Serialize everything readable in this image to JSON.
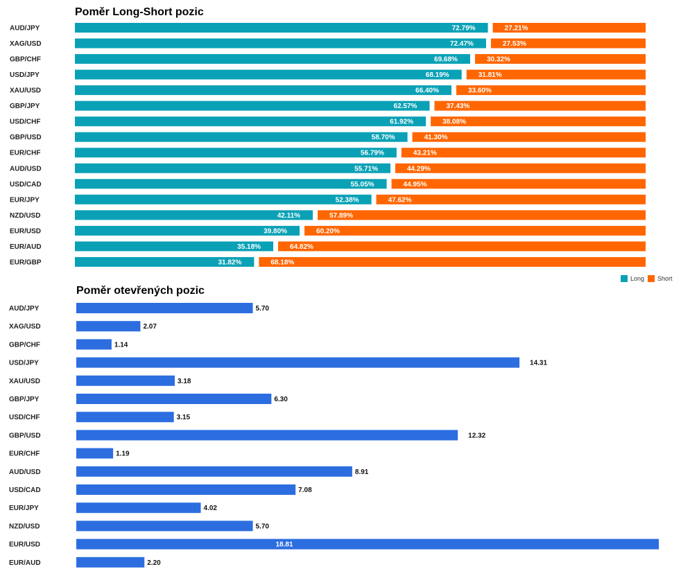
{
  "colors": {
    "long": "#0aa1b6",
    "short": "#ff6600",
    "open": "#2c6ee0"
  },
  "chart_data": [
    {
      "type": "bar",
      "stacked": true,
      "orientation": "horizontal",
      "title": "Poměr Long-Short pozic",
      "categories": [
        "AUD/JPY",
        "XAG/USD",
        "GBP/CHF",
        "USD/JPY",
        "XAU/USD",
        "GBP/JPY",
        "USD/CHF",
        "GBP/USD",
        "EUR/CHF",
        "AUD/USD",
        "USD/CAD",
        "EUR/JPY",
        "NZD/USD",
        "EUR/USD",
        "EUR/AUD",
        "EUR/GBP"
      ],
      "series": [
        {
          "name": "Long",
          "values": [
            72.79,
            72.47,
            69.68,
            68.19,
            66.4,
            62.57,
            61.92,
            58.7,
            56.79,
            55.71,
            55.05,
            52.38,
            42.11,
            39.8,
            35.18,
            31.82
          ]
        },
        {
          "name": "Short",
          "values": [
            27.21,
            27.53,
            30.32,
            31.81,
            33.6,
            37.43,
            38.08,
            41.3,
            43.21,
            44.29,
            44.95,
            47.62,
            57.89,
            60.2,
            64.82,
            68.18
          ]
        }
      ],
      "labels": {
        "long": [
          "72.79%",
          "72.47%",
          "69.68%",
          "68.19%",
          "66.40%",
          "62.57%",
          "61.92%",
          "58.70%",
          "56.79%",
          "55.71%",
          "55.05%",
          "52.38%",
          "42.11%",
          "39.80%",
          "35.18%",
          "31.82%"
        ],
        "short": [
          "27.21%",
          "27.53%",
          "30.32%",
          "31.81%",
          "33.60%",
          "37.43%",
          "38.08%",
          "41.30%",
          "43.21%",
          "44.29%",
          "44.95%",
          "47.62%",
          "57.89%",
          "60.20%",
          "64.82%",
          "68.18%"
        ]
      },
      "xlim": [
        0,
        100
      ],
      "legend": {
        "position": "bottom-right",
        "entries": [
          "Long",
          "Short"
        ]
      }
    },
    {
      "type": "bar",
      "orientation": "horizontal",
      "title": "Poměr otevřených pozic",
      "categories": [
        "AUD/JPY",
        "XAG/USD",
        "GBP/CHF",
        "USD/JPY",
        "XAU/USD",
        "GBP/JPY",
        "USD/CHF",
        "GBP/USD",
        "EUR/CHF",
        "AUD/USD",
        "USD/CAD",
        "EUR/JPY",
        "NZD/USD",
        "EUR/USD",
        "EUR/AUD"
      ],
      "values": [
        5.7,
        2.07,
        1.14,
        14.31,
        3.18,
        6.3,
        3.15,
        12.32,
        1.19,
        8.91,
        7.08,
        4.02,
        5.7,
        18.81,
        2.2
      ],
      "labels": [
        "5.70",
        "2.07",
        "1.14",
        "14.31",
        "3.18",
        "6.30",
        "3.15",
        "12.32",
        "1.19",
        "8.91",
        "7.08",
        "4.02",
        "5.70",
        "18.81",
        "2.20"
      ],
      "xlim": [
        0,
        18.81
      ]
    }
  ]
}
